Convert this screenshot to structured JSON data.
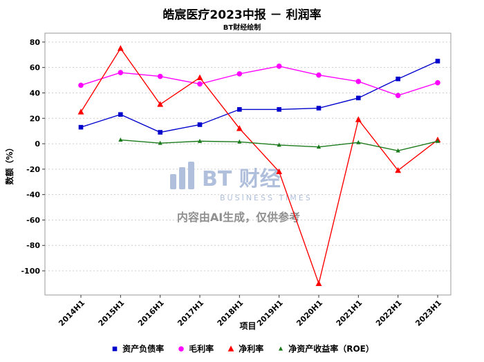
{
  "title": "皓宸医疗2023中报 － 利润率",
  "subtitle": "BT财经绘制",
  "watermark": {
    "brand": "BT 财经",
    "brand_sub": "BUSINESS TIMES",
    "notice": "内容由AI生成，仅供参考"
  },
  "chart_data": {
    "type": "line",
    "title": "皓宸医疗2023中报 － 利润率",
    "subtitle": "BT财经绘制",
    "xlabel": "项目",
    "ylabel": "数额（%）",
    "categories": [
      "2014H1",
      "2015H1",
      "2016H1",
      "2017H1",
      "2018H1",
      "2019H1",
      "2020H1",
      "2021H1",
      "2022H1",
      "2023H1"
    ],
    "series": [
      {
        "name": "资产负债率",
        "color": "#0000cd",
        "marker": "square",
        "values": [
          13,
          23,
          9,
          15,
          27,
          27,
          28,
          36,
          51,
          65
        ]
      },
      {
        "name": "毛利率",
        "color": "#ff00ff",
        "marker": "circle",
        "values": [
          46,
          56,
          53,
          47,
          55,
          61,
          54,
          49,
          38,
          48
        ]
      },
      {
        "name": "净利率",
        "color": "#ff0000",
        "marker": "triangle",
        "values": [
          25,
          75,
          31,
          52,
          12,
          -22,
          -110,
          19,
          -21,
          3
        ]
      },
      {
        "name": "净资产收益率（ROE）",
        "color": "#1b7a1b",
        "marker": "triangle-small",
        "values": [
          null,
          3,
          0.5,
          2,
          1.5,
          -1,
          -2.5,
          1,
          -5.5,
          2
        ]
      }
    ],
    "ylim": [
      -119,
      87
    ],
    "yticks": [
      80,
      60,
      40,
      20,
      0,
      -20,
      -40,
      -60,
      -80,
      -100
    ],
    "grid": true,
    "legend_position": "bottom"
  }
}
